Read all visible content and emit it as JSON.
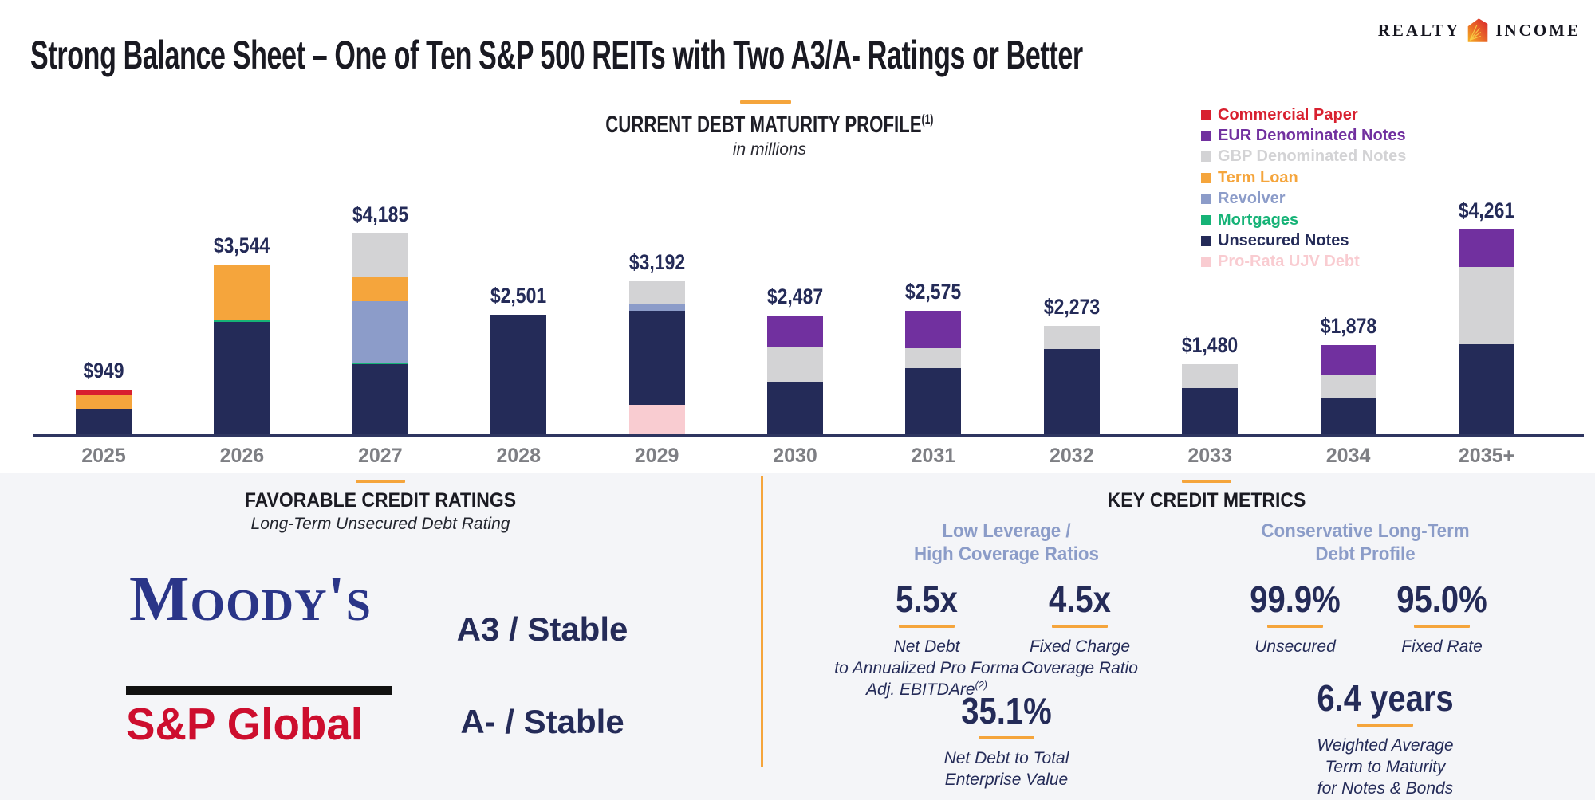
{
  "logo": {
    "part1": "REALTY",
    "part2": "INCOME"
  },
  "header": {
    "title": "Strong Balance Sheet – One of Ten S&P 500 REITs with Two A3/A- Ratings or Better"
  },
  "chart_data": {
    "type": "bar",
    "stacked": true,
    "title": "CURRENT DEBT MATURITY PROFILE",
    "title_superscript": "(1)",
    "subtitle": "in millions",
    "unit": "USD millions",
    "legend_position": "top-right",
    "grid": false,
    "ylim": [
      0,
      4500
    ],
    "categories": [
      "2025",
      "2026",
      "2027",
      "2028",
      "2029",
      "2030",
      "2031",
      "2032",
      "2033",
      "2034",
      "2035+"
    ],
    "totals": [
      949,
      3544,
      4185,
      2501,
      3192,
      2487,
      2575,
      2273,
      1480,
      1878,
      4261
    ],
    "totals_label": [
      "$949",
      "$3,544",
      "$4,185",
      "$2,501",
      "$3,192",
      "$2,487",
      "$2,575",
      "$2,273",
      "$1,480",
      "$1,878",
      "$4,261"
    ],
    "series": [
      {
        "name": "Pro-Rata UJV Debt",
        "slug": "pro-rata-ujv-debt",
        "color": "#F9CCD1",
        "values": [
          0,
          0,
          0,
          0,
          640,
          0,
          0,
          0,
          0,
          0,
          0
        ]
      },
      {
        "name": "Unsecured Notes",
        "slug": "unsecured-notes",
        "color": "#242B58",
        "values": [
          559,
          2355,
          1480,
          2501,
          1950,
          1125,
          1400,
          1795,
          990,
          790,
          1890
        ]
      },
      {
        "name": "Mortgages",
        "slug": "mortgages",
        "color": "#16B377",
        "values": [
          0,
          25,
          30,
          0,
          0,
          0,
          0,
          0,
          0,
          0,
          0
        ]
      },
      {
        "name": "Revolver",
        "slug": "revolver",
        "color": "#8C9CC9",
        "values": [
          0,
          0,
          1275,
          0,
          135,
          0,
          0,
          0,
          0,
          0,
          0
        ]
      },
      {
        "name": "Term Loan",
        "slug": "term-loan",
        "color": "#F5A53C",
        "values": [
          280,
          1164,
          495,
          0,
          0,
          0,
          0,
          0,
          0,
          0,
          0
        ]
      },
      {
        "name": "GBP Denominated Notes",
        "slug": "gbp-denominated-notes",
        "color": "#D3D3D5",
        "values": [
          0,
          0,
          905,
          0,
          467,
          715,
          410,
          478,
          490,
          455,
          1600
        ]
      },
      {
        "name": "EUR Denominated Notes",
        "slug": "eur-denominated-notes",
        "color": "#71309F",
        "values": [
          0,
          0,
          0,
          0,
          0,
          647,
          765,
          0,
          0,
          633,
          771
        ]
      },
      {
        "name": "Commercial Paper",
        "slug": "commercial-paper",
        "color": "#D8202F",
        "values": [
          110,
          0,
          0,
          0,
          0,
          0,
          0,
          0,
          0,
          0,
          0
        ]
      }
    ]
  },
  "ratings": {
    "heading": "FAVORABLE CREDIT RATINGS",
    "subheading": "Long-Term Unsecured Debt Rating",
    "agencies": [
      {
        "name": "Moody's",
        "rating": "A3 / Stable"
      },
      {
        "name": "S&P Global",
        "rating": "A- / Stable"
      }
    ]
  },
  "metrics": {
    "heading": "KEY CREDIT METRICS",
    "groups": [
      {
        "title": "Low Leverage /\nHigh Coverage Ratios"
      },
      {
        "title": "Conservative Long-Term\nDebt Profile"
      }
    ],
    "stats": [
      {
        "value": "5.5x",
        "caption": "Net Debt\nto Annualized Pro Forma\nAdj. EBITDAre",
        "caption_superscript": "(2)"
      },
      {
        "value": "4.5x",
        "caption": "Fixed Charge\nCoverage Ratio"
      },
      {
        "value": "35.1%",
        "caption": "Net Debt to Total\nEnterprise Value"
      },
      {
        "value": "99.9%",
        "caption": "Unsecured"
      },
      {
        "value": "95.0%",
        "caption": "Fixed Rate"
      },
      {
        "value": "6.4 years",
        "caption": "Weighted Average\nTerm to Maturity\nfor Notes & Bonds"
      }
    ]
  },
  "colors": {
    "accent_orange": "#F5A53C",
    "navy": "#242B58",
    "metric_heading_blue": "#8B9CC8",
    "moodys_blue": "#2A3588",
    "sp_global_red": "#CD0E2E",
    "axis_label_gray": "#7E7F84",
    "panel_background": "#F4F5F8"
  }
}
